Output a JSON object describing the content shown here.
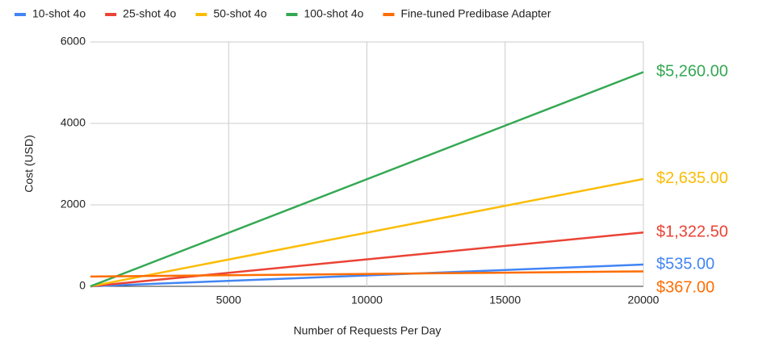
{
  "chart_data": {
    "type": "line",
    "x_label": "Number of Requests Per Day",
    "y_label": "Cost (USD)",
    "x": [
      0,
      20000
    ],
    "series": [
      {
        "name": "10-shot 4o",
        "color": "#4285f4",
        "values": [
          0,
          535
        ],
        "value_labels": [
          null,
          "$535.00"
        ]
      },
      {
        "name": "25-shot 4o",
        "color": "#ea4335",
        "values": [
          0,
          1322.5
        ],
        "value_labels": [
          null,
          "$1,322.50"
        ]
      },
      {
        "name": "50-shot 4o",
        "color": "#fbbc04",
        "values": [
          0,
          2635
        ],
        "value_labels": [
          null,
          "$2,635.00"
        ]
      },
      {
        "name": "100-shot 4o",
        "color": "#34a853",
        "values": [
          0,
          5260
        ],
        "value_labels": [
          null,
          "$5,260.00"
        ]
      },
      {
        "name": "Fine-tuned Predibase Adapter",
        "color": "#ff6d01",
        "values": [
          240,
          367
        ],
        "value_labels": [
          null,
          "$367.00"
        ]
      }
    ],
    "xlim": [
      0,
      20000
    ],
    "xticks": [
      5000,
      10000,
      15000,
      20000
    ],
    "ylim": [
      0,
      6000
    ],
    "yticks": [
      0,
      2000,
      4000,
      6000
    ],
    "grid": true,
    "legend": "top"
  }
}
